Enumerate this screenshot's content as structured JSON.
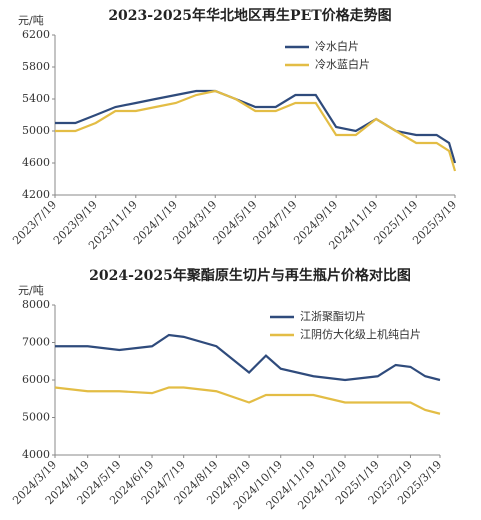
{
  "chart_data": [
    {
      "type": "line",
      "title": "2023-2025年华北地区再生PET价格走势图",
      "y_unit": "元/吨",
      "x": [
        "2023/7/19",
        "2023/8/19",
        "2023/9/19",
        "2023/10/19",
        "2023/11/19",
        "2023/12/19",
        "2024/1/19",
        "2024/2/19",
        "2024/3/19",
        "2024/4/19",
        "2024/5/19",
        "2024/6/19",
        "2024/7/19",
        "2024/8/19",
        "2024/9/19",
        "2024/10/19",
        "2024/11/19",
        "2024/12/19",
        "2025/1/19",
        "2025/2/19",
        "2025/3/10",
        "2025/3/19"
      ],
      "xlim": [
        "2023/7/19",
        "2025/3/19"
      ],
      "xticks": [
        "2023/7/19",
        "2023/9/19",
        "2023/11/19",
        "2024/1/19",
        "2024/3/19",
        "2024/5/19",
        "2024/7/19",
        "2024/9/19",
        "2024/11/19",
        "2025/1/19",
        "2025/3/19"
      ],
      "ylim": [
        4200,
        6200
      ],
      "yticks": [
        4200,
        4600,
        5000,
        5400,
        5800,
        6200
      ],
      "grid": false,
      "legend": "upper right",
      "series": [
        {
          "name": "冷水白片",
          "color": "#2f4b7c",
          "values": [
            5100,
            5100,
            5200,
            5300,
            5350,
            5400,
            5450,
            5500,
            5500,
            5400,
            5300,
            5300,
            5450,
            5450,
            5050,
            5000,
            5150,
            5000,
            4950,
            4950,
            4850,
            4600
          ]
        },
        {
          "name": "冷水蓝白片",
          "color": "#e3bd45",
          "values": [
            5000,
            5000,
            5100,
            5250,
            5250,
            5300,
            5350,
            5450,
            5500,
            5400,
            5250,
            5250,
            5350,
            5350,
            4950,
            4950,
            5150,
            5000,
            4850,
            4850,
            4750,
            4500
          ]
        }
      ]
    },
    {
      "type": "line",
      "title": "2024-2025年聚酯原生切片与再生瓶片价格对比图",
      "y_unit": "元/吨",
      "x": [
        "2024/3/19",
        "2024/4/19",
        "2024/5/19",
        "2024/6/19",
        "2024/7/5",
        "2024/7/19",
        "2024/8/19",
        "2024/9/19",
        "2024/10/5",
        "2024/10/19",
        "2024/11/19",
        "2024/12/19",
        "2025/1/19",
        "2025/2/5",
        "2025/2/19",
        "2025/3/5",
        "2025/3/19"
      ],
      "xlim": [
        "2024/3/19",
        "2025/3/19"
      ],
      "xticks": [
        "2024/3/19",
        "2024/4/19",
        "2024/5/19",
        "2024/6/19",
        "2024/7/19",
        "2024/8/19",
        "2024/9/19",
        "2024/10/19",
        "2024/11/19",
        "2024/12/19",
        "2025/1/19",
        "2025/2/19",
        "2025/3/19"
      ],
      "ylim": [
        4000,
        8000
      ],
      "yticks": [
        4000,
        5000,
        6000,
        7000,
        8000
      ],
      "grid": false,
      "legend": "upper right",
      "series": [
        {
          "name": "江浙聚酯切片",
          "color": "#2f4b7c",
          "values": [
            6900,
            6900,
            6800,
            6900,
            7200,
            7150,
            6900,
            6200,
            6650,
            6300,
            6100,
            6000,
            6100,
            6400,
            6350,
            6100,
            6000
          ]
        },
        {
          "name": "江阴仿大化级上机纯白片",
          "color": "#e3bd45",
          "values": [
            5800,
            5700,
            5700,
            5650,
            5800,
            5800,
            5700,
            5400,
            5600,
            5600,
            5600,
            5400,
            5400,
            5400,
            5400,
            5200,
            5100
          ]
        }
      ]
    }
  ]
}
